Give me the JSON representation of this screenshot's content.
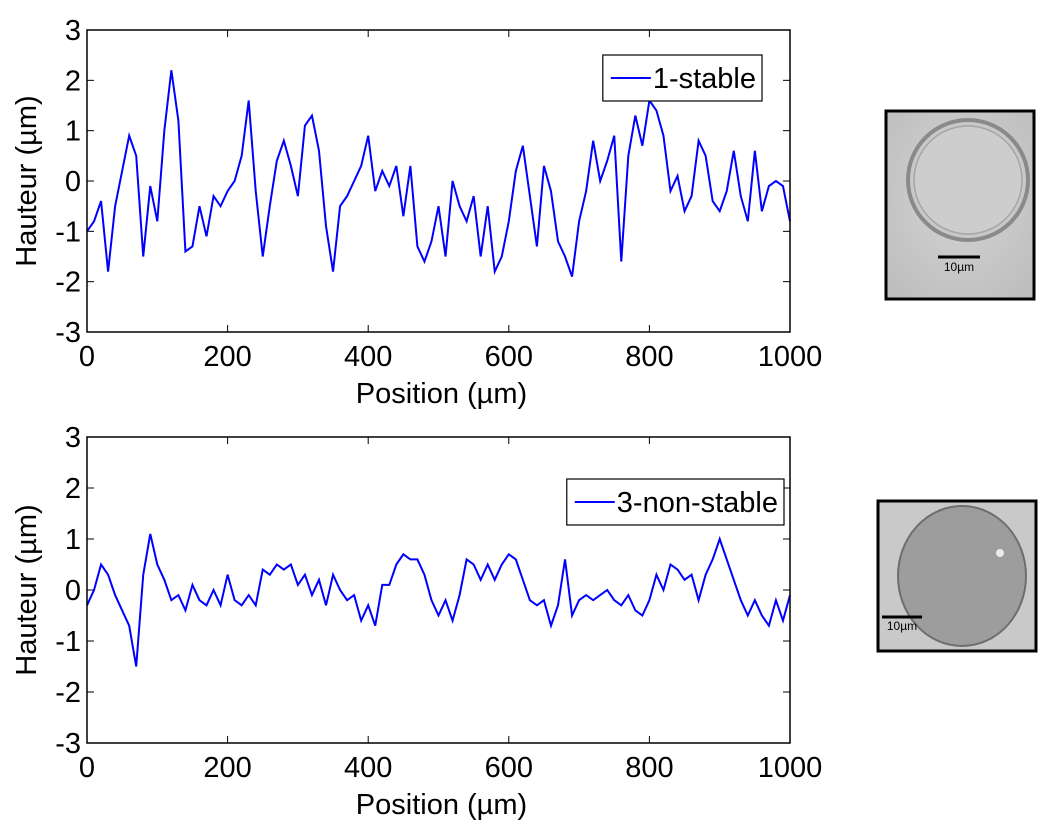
{
  "chart_data": [
    {
      "type": "line",
      "xlabel": "Position (µm)",
      "ylabel": "Hauteur (µm)",
      "xlim": [
        0,
        1000
      ],
      "ylim": [
        -3,
        3
      ],
      "xticks": [
        0,
        200,
        400,
        600,
        800,
        1000
      ],
      "yticks": [
        -3,
        -2,
        -1,
        0,
        1,
        2,
        3
      ],
      "legend": "upper right",
      "inset_label": "10µm",
      "x": [
        0,
        10,
        20,
        30,
        40,
        50,
        60,
        70,
        80,
        90,
        100,
        110,
        120,
        130,
        140,
        150,
        160,
        170,
        180,
        190,
        200,
        210,
        220,
        230,
        240,
        250,
        260,
        270,
        280,
        290,
        300,
        310,
        320,
        330,
        340,
        350,
        360,
        370,
        380,
        390,
        400,
        410,
        420,
        430,
        440,
        450,
        460,
        470,
        480,
        490,
        500,
        510,
        520,
        530,
        540,
        550,
        560,
        570,
        580,
        590,
        600,
        610,
        620,
        630,
        640,
        650,
        660,
        670,
        680,
        690,
        700,
        710,
        720,
        730,
        740,
        750,
        760,
        770,
        780,
        790,
        800,
        810,
        820,
        830,
        840,
        850,
        860,
        870,
        880,
        890,
        900,
        910,
        920,
        930,
        940,
        950,
        960,
        970,
        980,
        990,
        1000
      ],
      "series": [
        {
          "name": "1-stable",
          "color": "#0000ff",
          "values": [
            -1,
            -0.8,
            -0.4,
            -1.8,
            -0.5,
            0.2,
            0.9,
            0.5,
            -1.5,
            -0.1,
            -0.8,
            1,
            2.2,
            1.2,
            -1.4,
            -1.3,
            -0.5,
            -1.1,
            -0.3,
            -0.5,
            -0.2,
            0,
            0.5,
            1.6,
            -0.2,
            -1.5,
            -0.5,
            0.4,
            0.8,
            0.3,
            -0.3,
            1.1,
            1.3,
            0.6,
            -0.9,
            -1.8,
            -0.5,
            -0.3,
            0,
            0.3,
            0.9,
            -0.2,
            0.2,
            -0.1,
            0.3,
            -0.7,
            0.3,
            -1.3,
            -1.6,
            -1.2,
            -0.5,
            -1.5,
            0,
            -0.5,
            -0.8,
            -0.3,
            -1.5,
            -0.5,
            -1.8,
            -1.5,
            -0.8,
            0.2,
            0.7,
            -0.3,
            -1.3,
            0.3,
            -0.2,
            -1.2,
            -1.5,
            -1.9,
            -0.8,
            -0.2,
            0.8,
            0,
            0.4,
            0.9,
            -1.6,
            0.5,
            1.3,
            0.7,
            1.6,
            1.4,
            0.9,
            -0.2,
            0.1,
            -0.6,
            -0.3,
            0.8,
            0.5,
            -0.4,
            -0.6,
            -0.2,
            0.6,
            -0.3,
            -0.8,
            0.6,
            -0.6,
            -0.1,
            0,
            -0.1,
            -0.8
          ]
        }
      ]
    },
    {
      "type": "line",
      "xlabel": "Position (µm)",
      "ylabel": "Hauteur (µm)",
      "xlim": [
        0,
        1000
      ],
      "ylim": [
        -3,
        3
      ],
      "xticks": [
        0,
        200,
        400,
        600,
        800,
        1000
      ],
      "yticks": [
        -3,
        -2,
        -1,
        0,
        1,
        2,
        3
      ],
      "legend": "upper right",
      "inset_label": "10µm",
      "x": [
        0,
        10,
        20,
        30,
        40,
        50,
        60,
        70,
        80,
        90,
        100,
        110,
        120,
        130,
        140,
        150,
        160,
        170,
        180,
        190,
        200,
        210,
        220,
        230,
        240,
        250,
        260,
        270,
        280,
        290,
        300,
        310,
        320,
        330,
        340,
        350,
        360,
        370,
        380,
        390,
        400,
        410,
        420,
        430,
        440,
        450,
        460,
        470,
        480,
        490,
        500,
        510,
        520,
        530,
        540,
        550,
        560,
        570,
        580,
        590,
        600,
        610,
        620,
        630,
        640,
        650,
        660,
        670,
        680,
        690,
        700,
        710,
        720,
        730,
        740,
        750,
        760,
        770,
        780,
        790,
        800,
        810,
        820,
        830,
        840,
        850,
        860,
        870,
        880,
        890,
        900,
        910,
        920,
        930,
        940,
        950,
        960,
        970,
        980,
        990,
        1000
      ],
      "series": [
        {
          "name": "3-non-stable",
          "color": "#0000ff",
          "values": [
            -0.3,
            0,
            0.5,
            0.3,
            -0.1,
            -0.4,
            -0.7,
            -1.5,
            0.3,
            1.1,
            0.5,
            0.2,
            -0.2,
            -0.1,
            -0.4,
            0.1,
            -0.2,
            -0.3,
            0,
            -0.3,
            0.3,
            -0.2,
            -0.3,
            -0.1,
            -0.3,
            0.4,
            0.3,
            0.5,
            0.4,
            0.5,
            0.1,
            0.3,
            -0.1,
            0.2,
            -0.3,
            0.3,
            0,
            -0.2,
            -0.1,
            -0.6,
            -0.3,
            -0.7,
            0.1,
            0.1,
            0.5,
            0.7,
            0.6,
            0.6,
            0.3,
            -0.2,
            -0.5,
            -0.2,
            -0.6,
            -0.1,
            0.6,
            0.5,
            0.2,
            0.5,
            0.2,
            0.5,
            0.7,
            0.6,
            0.2,
            -0.2,
            -0.3,
            -0.2,
            -0.7,
            -0.3,
            0.6,
            -0.5,
            -0.2,
            -0.1,
            -0.2,
            -0.1,
            0,
            -0.2,
            -0.3,
            -0.1,
            -0.4,
            -0.5,
            -0.2,
            0.3,
            0,
            0.5,
            0.4,
            0.2,
            0.3,
            -0.2,
            0.3,
            0.6,
            1,
            0.6,
            0.2,
            -0.2,
            -0.5,
            -0.2,
            -0.5,
            -0.7,
            -0.2,
            -0.6,
            -0.1
          ]
        }
      ]
    }
  ]
}
